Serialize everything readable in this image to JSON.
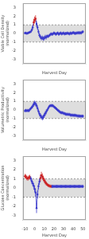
{
  "chart_data": [
    {
      "type": "line",
      "x_label": "Harvest Day",
      "y_label": "Viable Cell Density\n(normalized)",
      "x": [
        -10,
        -9,
        -8,
        -7,
        -6,
        -5,
        -4,
        -3,
        -2,
        -1,
        0,
        1,
        2,
        3,
        4,
        5,
        6,
        7,
        8,
        9,
        10,
        11,
        12,
        13,
        14,
        15,
        16,
        17,
        18,
        19,
        20,
        21,
        22,
        23,
        24,
        25,
        26,
        27,
        28,
        29,
        30,
        31,
        32,
        33,
        34,
        35,
        36,
        37,
        38,
        39,
        40,
        41,
        42,
        43,
        44,
        45,
        46,
        47,
        48,
        49,
        50
      ],
      "values": [
        0.05,
        0.05,
        0.0,
        0.05,
        0.1,
        0.15,
        0.2,
        0.4,
        0.7,
        1.3,
        1.55,
        1.7,
        1.1,
        0.7,
        0.2,
        -0.2,
        -0.4,
        -0.55,
        -0.5,
        -0.6,
        -0.55,
        -0.4,
        -0.45,
        -0.3,
        -0.35,
        -0.25,
        -0.15,
        -0.05,
        -0.1,
        -0.05,
        0.05,
        0.0,
        -0.1,
        0.0,
        0.05,
        -0.1,
        0.0,
        0.05,
        -0.05,
        0.0,
        0.05,
        -0.05,
        0.0,
        0.0,
        0.05,
        0.0,
        -0.05,
        0.05,
        0.0,
        0.05,
        0.1,
        0.05,
        0.0,
        0.05,
        0.05,
        0.1,
        0.05,
        0.1,
        0.05,
        0.15,
        0.2
      ],
      "errors": [
        0.15,
        0.15,
        0.15,
        0.15,
        0.15,
        0.15,
        0.15,
        0.2,
        0.3,
        0.4,
        0.4,
        0.4,
        0.35,
        0.3,
        0.25,
        0.25,
        0.25,
        0.25,
        0.25,
        0.25,
        0.25,
        0.25,
        0.25,
        0.18,
        0.18,
        0.18,
        0.18,
        0.18,
        0.18,
        0.18,
        0.18,
        0.18,
        0.18,
        0.18,
        0.18,
        0.18,
        0.18,
        0.18,
        0.18,
        0.18,
        0.18,
        0.18,
        0.18,
        0.18,
        0.18,
        0.18,
        0.18,
        0.18,
        0.18,
        0.18,
        0.18,
        0.18,
        0.18,
        0.18,
        0.18,
        0.18,
        0.18,
        0.18,
        0.18,
        0.18,
        0.18
      ],
      "color": "#3a3acc",
      "colors": [
        "#3a3acc",
        "#3a3acc",
        "#3a3acc",
        "#3a3acc",
        "#3a3acc",
        "#3a3acc",
        "#3a3acc",
        "#3a3acc",
        "#3a3acc",
        "#cc2222",
        "#cc2222",
        "#cc2222",
        "#3a3acc",
        "#3a3acc",
        "#3a3acc",
        "#3a3acc",
        "#3a3acc",
        "#3a3acc",
        "#3a3acc",
        "#3a3acc",
        "#3a3acc",
        "#3a3acc",
        "#3a3acc",
        "#3a3acc",
        "#3a3acc",
        "#3a3acc",
        "#3a3acc",
        "#3a3acc",
        "#3a3acc",
        "#3a3acc",
        "#3a3acc",
        "#3a3acc",
        "#3a3acc",
        "#3a3acc",
        "#3a3acc",
        "#3a3acc",
        "#3a3acc",
        "#3a3acc",
        "#3a3acc",
        "#3a3acc",
        "#3a3acc",
        "#3a3acc",
        "#3a3acc",
        "#3a3acc",
        "#3a3acc",
        "#3a3acc",
        "#3a3acc",
        "#3a3acc",
        "#3a3acc",
        "#3a3acc",
        "#3a3acc",
        "#3a3acc",
        "#3a3acc",
        "#3a3acc",
        "#3a3acc",
        "#3a3acc",
        "#3a3acc",
        "#3a3acc",
        "#3a3acc",
        "#3a3acc",
        "#3a3acc"
      ],
      "band": [
        -1,
        1
      ],
      "xlim": [
        -12,
        53
      ],
      "ylim": [
        -3.5,
        3.5
      ],
      "xticks": [
        -10,
        0,
        10,
        20,
        30,
        40,
        50
      ],
      "yticks": [
        -3,
        -2,
        -1,
        0,
        1,
        2,
        3
      ],
      "grid": false,
      "tick_labels": "y"
    },
    {
      "type": "line",
      "x_label": "Harvest Day",
      "y_label": "Volumetric Productivity\n(normalized)",
      "x": [
        -10,
        -9,
        -8,
        -7,
        -6,
        -5,
        -4,
        -3,
        -2,
        -1,
        0,
        1,
        2,
        3,
        4,
        5,
        6,
        7,
        8,
        9,
        10,
        11,
        12,
        13,
        14,
        15,
        16,
        17,
        18,
        19,
        20,
        21,
        22,
        23,
        24,
        25,
        26,
        27,
        28,
        29,
        30,
        31,
        32,
        33,
        34,
        35,
        36,
        37,
        38,
        39,
        40,
        41,
        42,
        43,
        44,
        45,
        46,
        47,
        48,
        49,
        50
      ],
      "values": [
        -0.1,
        -0.05,
        -0.1,
        -0.05,
        -0.1,
        0.05,
        0.15,
        0.3,
        0.45,
        0.65,
        0.8,
        0.7,
        0.5,
        0.2,
        -0.15,
        -0.45,
        -0.65,
        -0.82,
        -0.92,
        -0.82,
        -0.62,
        -0.42,
        -0.22,
        -0.02,
        0.18,
        0.38,
        0.48,
        0.5,
        0.5,
        0.48,
        0.38,
        0.28,
        0.18,
        0.08,
        -0.02,
        -0.12,
        -0.22,
        -0.3,
        -0.32,
        -0.32,
        -0.4,
        -0.42,
        -0.48,
        -0.5,
        -0.5,
        -0.52,
        -0.52,
        -0.58,
        -0.6,
        -0.6,
        -0.62,
        -0.62,
        -0.62,
        -0.64,
        -0.68,
        -0.7,
        -0.7,
        -0.72,
        -0.72,
        -0.72,
        -0.72
      ],
      "errors": [
        0.18,
        0.18,
        0.18,
        0.18,
        0.18,
        0.18,
        0.18,
        0.18,
        0.25,
        0.28,
        0.28,
        0.28,
        0.28,
        0.28,
        0.28,
        0.28,
        0.28,
        0.28,
        0.28,
        0.28,
        0.28,
        0.28,
        0.28,
        0.18,
        0.18,
        0.18,
        0.18,
        0.18,
        0.18,
        0.18,
        0.18,
        0.18,
        0.18,
        0.18,
        0.18,
        0.18,
        0.18,
        0.18,
        0.18,
        0.18,
        0.18,
        0.18,
        0.18,
        0.18,
        0.18,
        0.18,
        0.18,
        0.18,
        0.18,
        0.18,
        0.18,
        0.18,
        0.18,
        0.18,
        0.18,
        0.18,
        0.18,
        0.18,
        0.18,
        0.18,
        0.18
      ],
      "color": "#3a3acc",
      "colors": [
        "#3a3acc",
        "#3a3acc",
        "#3a3acc",
        "#3a3acc",
        "#3a3acc",
        "#3a3acc",
        "#3a3acc",
        "#3a3acc",
        "#3a3acc",
        "#3a3acc",
        "#3a3acc",
        "#3a3acc",
        "#3a3acc",
        "#3a3acc",
        "#3a3acc",
        "#3a3acc",
        "#3a3acc",
        "#3a3acc",
        "#3a3acc",
        "#3a3acc",
        "#3a3acc",
        "#3a3acc",
        "#3a3acc",
        "#3a3acc",
        "#3a3acc",
        "#3a3acc",
        "#3a3acc",
        "#3a3acc",
        "#3a3acc",
        "#3a3acc",
        "#3a3acc",
        "#3a3acc",
        "#3a3acc",
        "#3a3acc",
        "#3a3acc",
        "#3a3acc",
        "#3a3acc",
        "#3a3acc",
        "#3a3acc",
        "#3a3acc",
        "#3a3acc",
        "#3a3acc",
        "#3a3acc",
        "#3a3acc",
        "#3a3acc",
        "#3a3acc",
        "#3a3acc",
        "#3a3acc",
        "#3a3acc",
        "#3a3acc",
        "#3a3acc",
        "#3a3acc",
        "#3a3acc",
        "#3a3acc",
        "#3a3acc",
        "#3a3acc",
        "#3a3acc",
        "#3a3acc",
        "#3a3acc",
        "#3a3acc",
        "#3a3acc"
      ],
      "band": [
        -1,
        1
      ],
      "xlim": [
        -12,
        53
      ],
      "ylim": [
        -3.5,
        3.5
      ],
      "xticks": [
        -10,
        0,
        10,
        20,
        30,
        40,
        50
      ],
      "yticks": [
        -3,
        -2,
        -1,
        0,
        1,
        2,
        3
      ],
      "grid": false,
      "tick_labels": "y"
    },
    {
      "type": "line",
      "x_label": "Harvest Day",
      "y_label": "Glucose Concentration\n(normalized)",
      "x": [
        -10,
        -9,
        -8,
        -7,
        -6,
        -5,
        -4,
        -3,
        -2,
        -1,
        0,
        1,
        2,
        3,
        4,
        5,
        6,
        7,
        8,
        9,
        10,
        11,
        12,
        13,
        14,
        15,
        16,
        17,
        18,
        19,
        20,
        21,
        22,
        23,
        24,
        25,
        26,
        27,
        28,
        29,
        30,
        31,
        32,
        33,
        34,
        35,
        36,
        37,
        38,
        39,
        40,
        41,
        42,
        43,
        44,
        45,
        46,
        47,
        48,
        49,
        50
      ],
      "values": [
        1.3,
        1.25,
        1.1,
        1.05,
        1.15,
        1.2,
        1.05,
        0.75,
        0.5,
        0.25,
        -0.1,
        -0.5,
        -2.2,
        -0.7,
        0.2,
        0.7,
        1.1,
        1.4,
        1.25,
        1.05,
        0.85,
        0.65,
        0.5,
        0.38,
        0.3,
        0.25,
        0.2,
        0.18,
        0.18,
        0.18,
        0.18,
        0.18,
        0.18,
        0.18,
        0.18,
        0.18,
        0.18,
        0.18,
        0.18,
        0.18,
        0.18,
        0.18,
        0.18,
        0.18,
        0.18,
        0.18,
        0.18,
        0.18,
        0.18,
        0.18,
        0.18,
        0.18,
        0.18,
        0.18,
        0.18,
        0.18,
        0.18,
        0.18,
        0.18,
        0.18,
        0.18
      ],
      "errors": [
        0.25,
        0.25,
        0.25,
        0.25,
        0.25,
        0.25,
        0.25,
        0.28,
        0.28,
        0.3,
        0.38,
        0.45,
        0.55,
        0.45,
        0.35,
        0.35,
        0.38,
        0.38,
        0.35,
        0.3,
        0.28,
        0.25,
        0.22,
        0.18,
        0.18,
        0.18,
        0.18,
        0.18,
        0.18,
        0.18,
        0.18,
        0.18,
        0.18,
        0.18,
        0.18,
        0.18,
        0.18,
        0.18,
        0.18,
        0.18,
        0.18,
        0.18,
        0.18,
        0.18,
        0.18,
        0.18,
        0.18,
        0.18,
        0.18,
        0.18,
        0.18,
        0.18,
        0.18,
        0.18,
        0.18,
        0.18,
        0.18,
        0.18,
        0.18,
        0.18,
        0.18
      ],
      "color": "#3a3acc",
      "colors": [
        "#cc2222",
        "#cc2222",
        "#cc2222",
        "#cc2222",
        "#cc2222",
        "#cc2222",
        "#3a3acc",
        "#3a3acc",
        "#3a3acc",
        "#3a3acc",
        "#3a3acc",
        "#3a3acc",
        "#3a3acc",
        "#3a3acc",
        "#3a3acc",
        "#3a3acc",
        "#cc2222",
        "#cc2222",
        "#cc2222",
        "#cc2222",
        "#cc2222",
        "#cc2222",
        "#cc2222",
        "#cc2222",
        "#cc2222",
        "#cc2222",
        "#cc2222",
        "#cc2222",
        "#3a3acc",
        "#3a3acc",
        "#3a3acc",
        "#3a3acc",
        "#3a3acc",
        "#3a3acc",
        "#3a3acc",
        "#3a3acc",
        "#3a3acc",
        "#3a3acc",
        "#3a3acc",
        "#3a3acc",
        "#3a3acc",
        "#3a3acc",
        "#3a3acc",
        "#3a3acc",
        "#3a3acc",
        "#3a3acc",
        "#3a3acc",
        "#3a3acc",
        "#3a3acc",
        "#3a3acc",
        "#3a3acc",
        "#3a3acc",
        "#3a3acc",
        "#3a3acc",
        "#3a3acc",
        "#3a3acc",
        "#3a3acc",
        "#3a3acc",
        "#3a3acc",
        "#3a3acc",
        "#3a3acc"
      ],
      "band": [
        -1,
        1
      ],
      "xlim": [
        -12,
        53
      ],
      "ylim": [
        -3.5,
        3.5
      ],
      "xticks": [
        -10,
        0,
        10,
        20,
        30,
        40,
        50
      ],
      "yticks": [
        -3,
        -2,
        -1,
        0,
        1,
        2,
        3
      ],
      "grid": false
    }
  ]
}
